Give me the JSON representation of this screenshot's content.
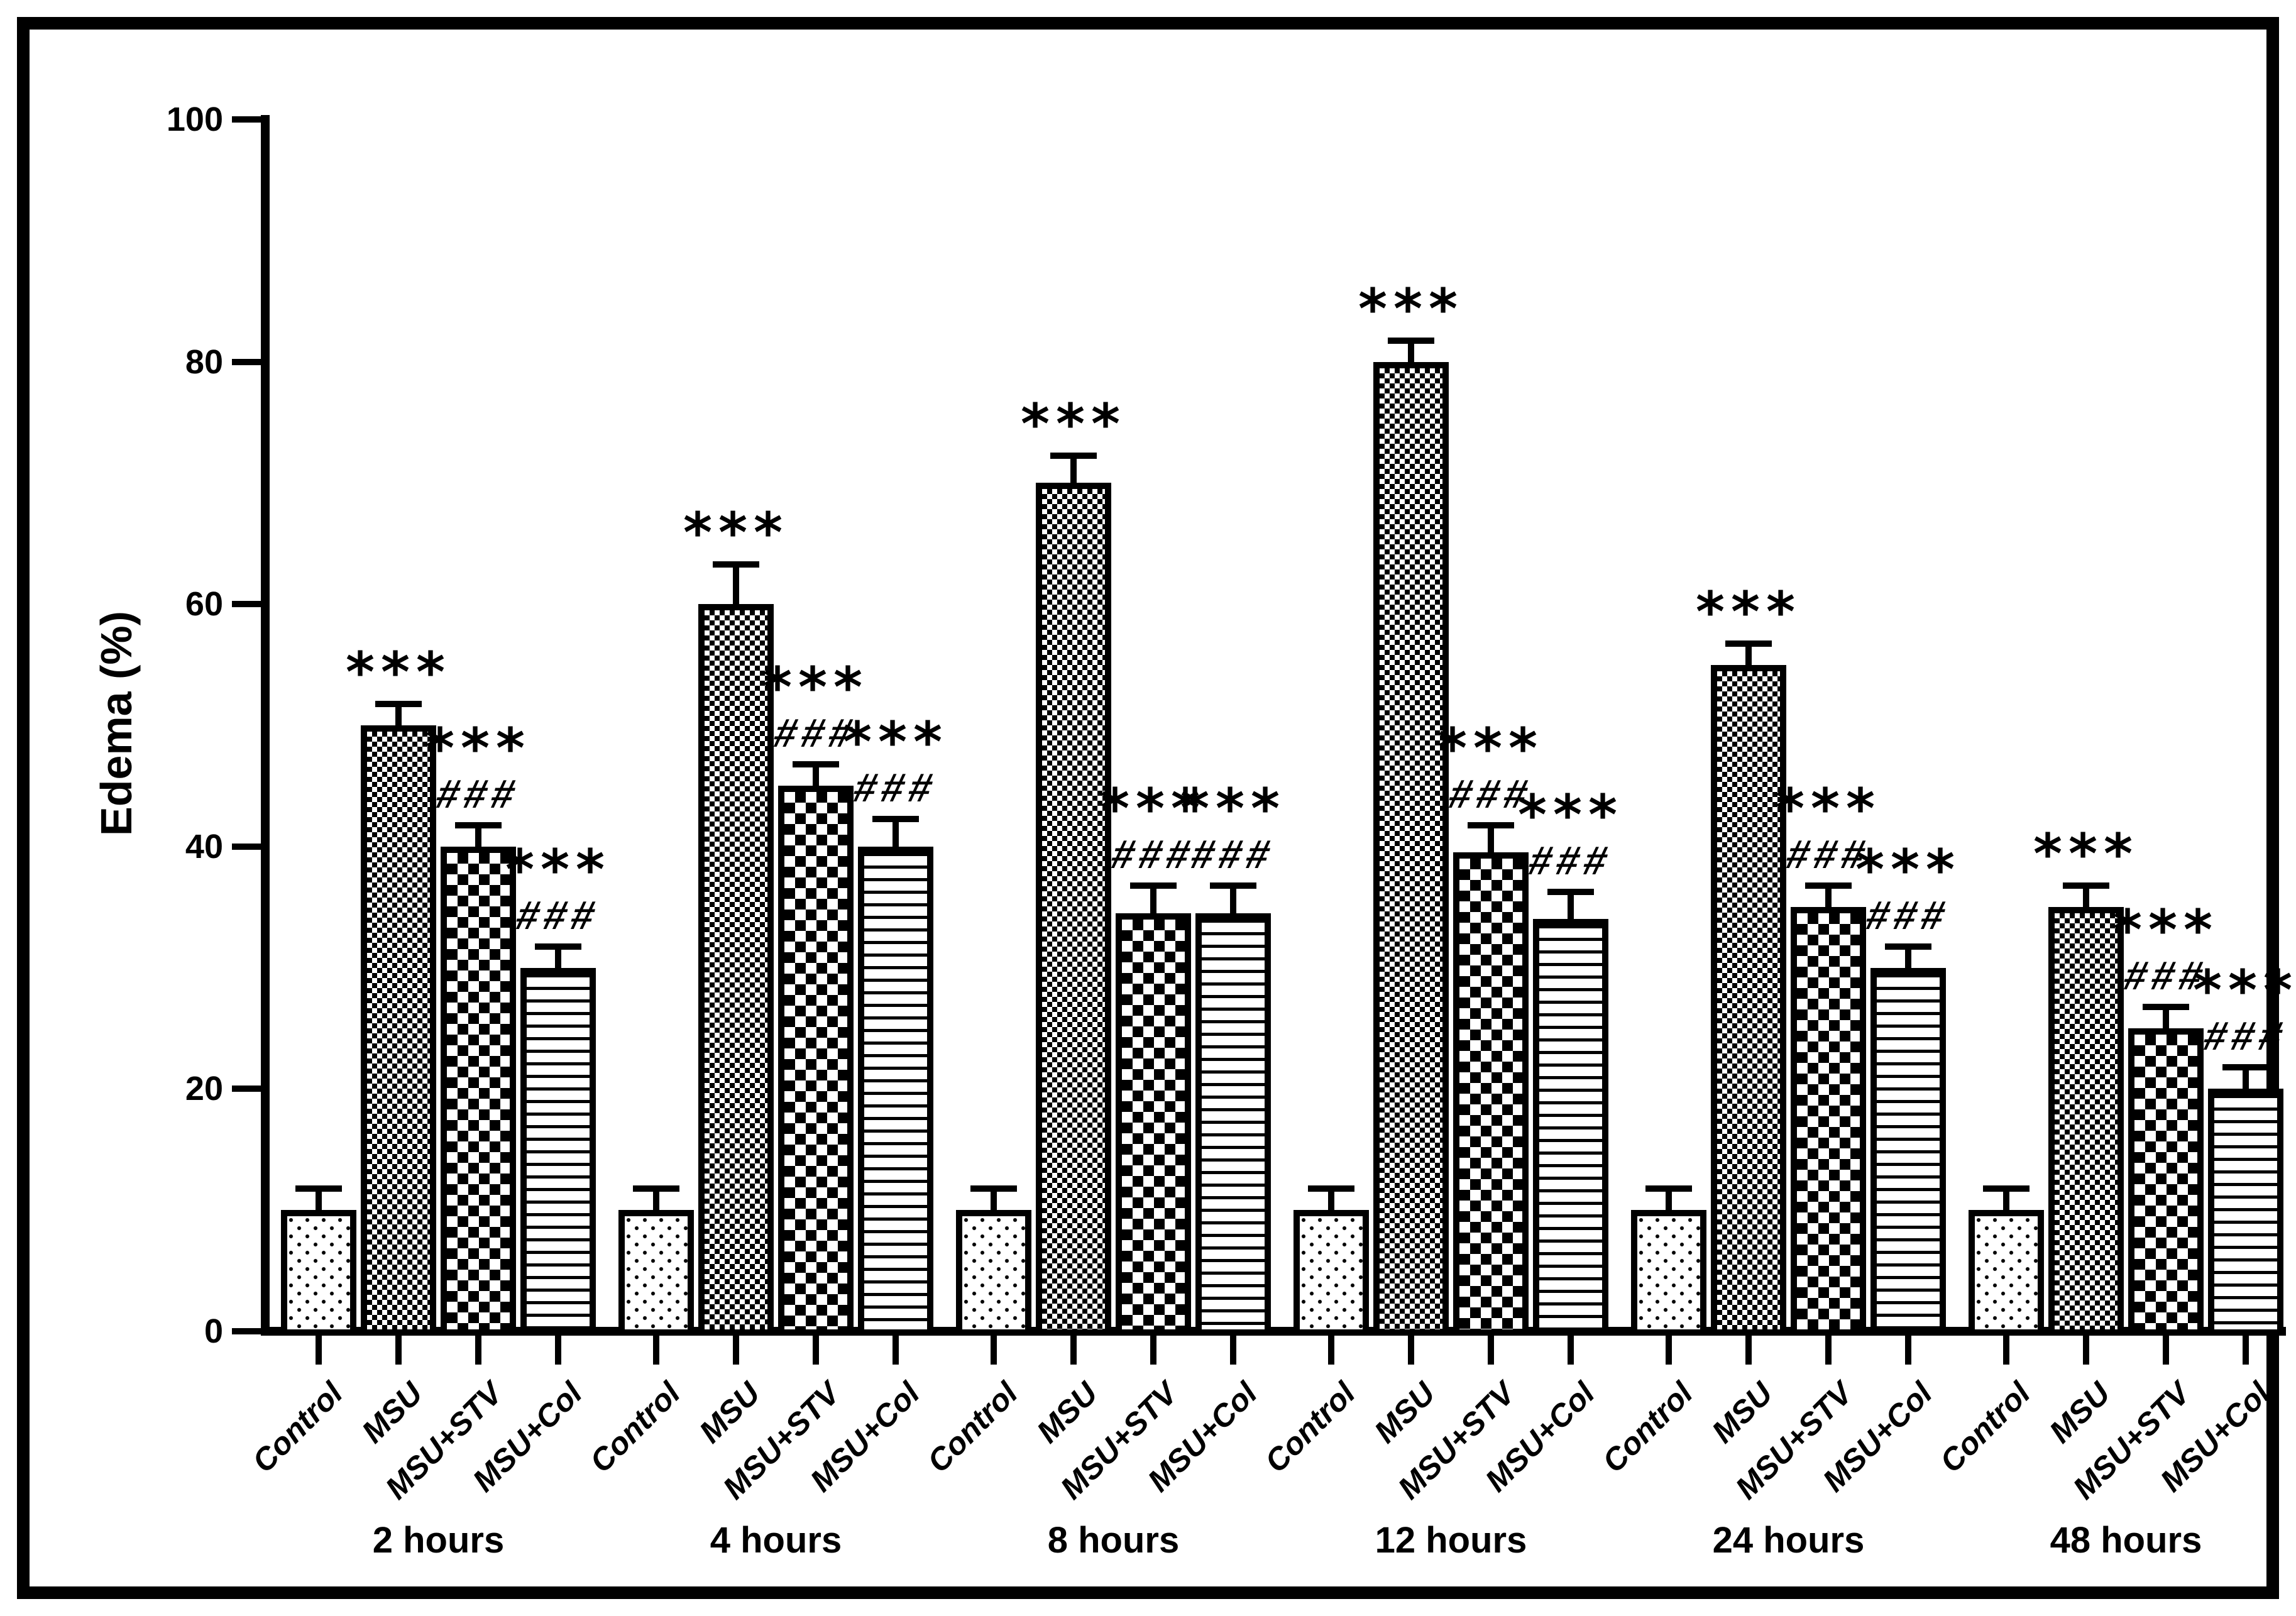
{
  "chart_data": {
    "type": "bar",
    "title": "",
    "ylabel": "Edema (%)",
    "xlabel": "",
    "ylim": [
      0,
      100
    ],
    "yticks": [
      0,
      20,
      40,
      60,
      80,
      100
    ],
    "grid": false,
    "legend_position": "none",
    "bar_color": "#000000",
    "background_color": "#ffffff",
    "categories": [
      "Control",
      "MSU",
      "MSU+STV",
      "MSU+Col"
    ],
    "bar_patterns": [
      "sparse-dots",
      "fine-checkerboard",
      "checkerboard",
      "horizontal-lines"
    ],
    "groups": [
      {
        "label": "2 hours",
        "values": [
          10,
          50,
          40,
          30
        ],
        "errors": [
          1.5,
          1.5,
          1.5,
          1.5
        ],
        "annotations": [
          [],
          [
            "***"
          ],
          [
            "***",
            "###"
          ],
          [
            "***",
            "###"
          ]
        ]
      },
      {
        "label": "4 hours",
        "values": [
          10,
          60,
          45,
          40
        ],
        "errors": [
          1.5,
          3,
          1.5,
          2
        ],
        "annotations": [
          [],
          [
            "***"
          ],
          [
            "***",
            "###"
          ],
          [
            "***",
            "###"
          ]
        ]
      },
      {
        "label": "8 hours",
        "values": [
          10,
          70,
          34.5,
          34.5
        ],
        "errors": [
          1.5,
          2,
          2,
          2
        ],
        "annotations": [
          [],
          [
            "***"
          ],
          [
            "***",
            "###"
          ],
          [
            "***",
            "###"
          ]
        ]
      },
      {
        "label": "12 hours",
        "values": [
          10,
          80,
          39.5,
          34
        ],
        "errors": [
          1.5,
          1.5,
          2,
          2
        ],
        "annotations": [
          [],
          [
            "***"
          ],
          [
            "***",
            "###"
          ],
          [
            "***",
            "###"
          ]
        ]
      },
      {
        "label": "24 hours",
        "values": [
          10,
          55,
          35,
          30
        ],
        "errors": [
          1.5,
          1.5,
          1.5,
          1.5
        ],
        "annotations": [
          [],
          [
            "***"
          ],
          [
            "***",
            "###"
          ],
          [
            "***",
            "###"
          ]
        ]
      },
      {
        "label": "48 hours",
        "values": [
          10,
          35,
          25,
          20
        ],
        "errors": [
          1.5,
          1.5,
          1.5,
          1.5
        ],
        "annotations": [
          [],
          [
            "***"
          ],
          [
            "***",
            "###"
          ],
          [
            "***",
            "###"
          ]
        ]
      }
    ]
  }
}
